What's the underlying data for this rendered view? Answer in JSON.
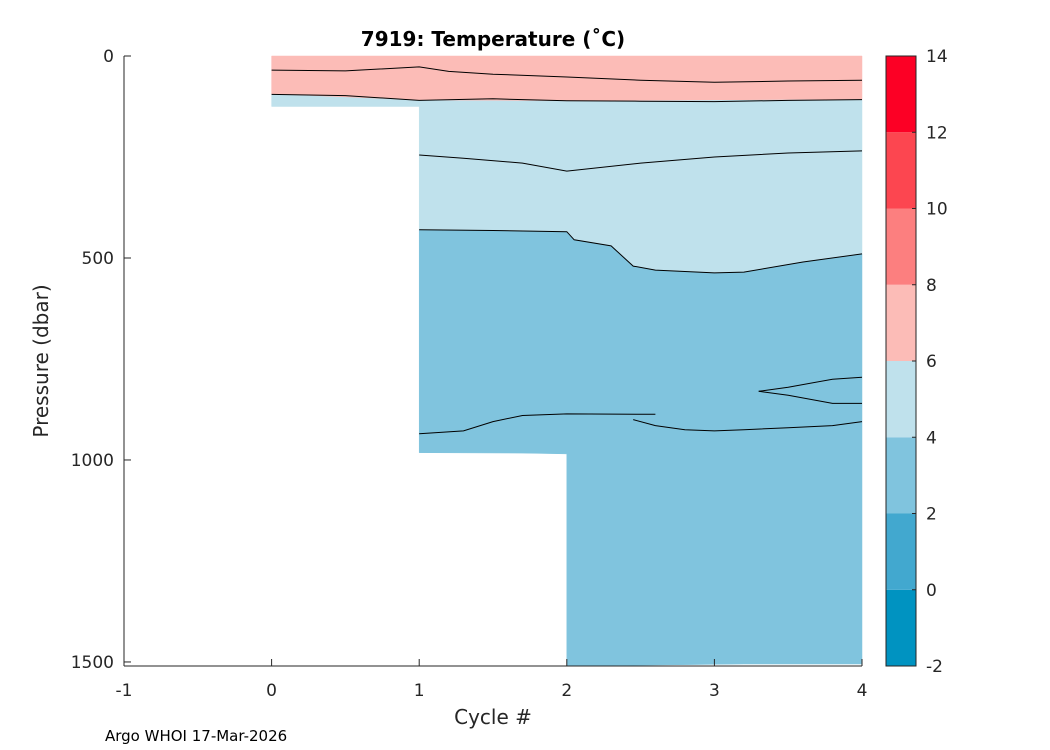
{
  "chart_data": {
    "type": "contourf",
    "title": "7919:  Temperature (˚C)",
    "xlabel": "Cycle #",
    "ylabel": "Pressure (dbar)",
    "xlim": [
      -1,
      4
    ],
    "ylim": [
      1510,
      0
    ],
    "x_ticks": [
      -1,
      0,
      1,
      2,
      3,
      4
    ],
    "y_ticks": [
      0,
      500,
      1000,
      1500
    ],
    "colorbar": {
      "ticks": [
        -2,
        0,
        2,
        4,
        6,
        8,
        10,
        12,
        14
      ],
      "range": [
        -2,
        14
      ],
      "bands": [
        {
          "range": [
            -2,
            0
          ],
          "color": "#0093c1"
        },
        {
          "range": [
            0,
            2
          ],
          "color": "#42a8cf"
        },
        {
          "range": [
            2,
            4
          ],
          "color": "#80c4de"
        },
        {
          "range": [
            4,
            6
          ],
          "color": "#bfe1ec"
        },
        {
          "range": [
            6,
            8
          ],
          "color": "#fcbcb7"
        },
        {
          "range": [
            8,
            10
          ],
          "color": "#fc7f7f"
        },
        {
          "range": [
            10,
            12
          ],
          "color": "#fc4650"
        },
        {
          "range": [
            12,
            14
          ],
          "color": "#fc0025"
        }
      ]
    },
    "regions": [
      {
        "name": "6-8 °C layer",
        "band": "6-8",
        "points": [
          [
            0,
            0
          ],
          [
            4,
            0
          ],
          [
            4,
            108
          ],
          [
            2,
            112
          ],
          [
            1,
            110
          ],
          [
            0,
            95
          ]
        ]
      },
      {
        "name": "4-6 °C layer profile 0",
        "band": "4-6",
        "points": [
          [
            0,
            95
          ],
          [
            1,
            110
          ],
          [
            1,
            125
          ],
          [
            0,
            125
          ]
        ]
      },
      {
        "name": "4-6 °C layer",
        "band": "4-6",
        "points": [
          [
            1,
            110
          ],
          [
            2,
            112
          ],
          [
            4,
            108
          ],
          [
            4,
            490
          ],
          [
            3.6,
            510
          ],
          [
            3.2,
            535
          ],
          [
            3,
            537
          ],
          [
            2.6,
            530
          ],
          [
            2.45,
            520
          ],
          [
            2.3,
            470
          ],
          [
            2.05,
            455
          ],
          [
            2,
            435
          ],
          [
            1.5,
            432
          ],
          [
            1,
            430
          ]
        ]
      },
      {
        "name": "2-4 °C layer",
        "band": "2-4",
        "points": [
          [
            1,
            430
          ],
          [
            1.5,
            432
          ],
          [
            2,
            435
          ],
          [
            2.05,
            455
          ],
          [
            2.3,
            470
          ],
          [
            2.45,
            520
          ],
          [
            2.6,
            530
          ],
          [
            3,
            537
          ],
          [
            3.2,
            535
          ],
          [
            3.6,
            510
          ],
          [
            4,
            490
          ],
          [
            4,
            1505
          ],
          [
            3.2,
            1505
          ],
          [
            2,
            1510
          ],
          [
            2,
            985
          ],
          [
            1.7,
            983
          ],
          [
            1,
            982
          ]
        ]
      }
    ],
    "contours": [
      {
        "level": 8,
        "points": [
          [
            0,
            35
          ],
          [
            0.5,
            37
          ],
          [
            1,
            27
          ],
          [
            1.2,
            38
          ],
          [
            1.5,
            45
          ],
          [
            2,
            52
          ],
          [
            2.5,
            60
          ],
          [
            3,
            65
          ],
          [
            3.5,
            62
          ],
          [
            4,
            60
          ]
        ]
      },
      {
        "level": 6,
        "points": [
          [
            0,
            95
          ],
          [
            0.5,
            98
          ],
          [
            1,
            110
          ],
          [
            1.5,
            106
          ],
          [
            2,
            111
          ],
          [
            2.5,
            112
          ],
          [
            3,
            113
          ],
          [
            3.5,
            110
          ],
          [
            4,
            108
          ]
        ]
      },
      {
        "level": 4,
        "points": [
          [
            1,
            245
          ],
          [
            1.3,
            253
          ],
          [
            1.7,
            265
          ],
          [
            2,
            285
          ],
          [
            2.5,
            265
          ],
          [
            3,
            250
          ],
          [
            3.5,
            240
          ],
          [
            4,
            235
          ]
        ]
      },
      {
        "level": 4,
        "points": [
          [
            1,
            430
          ],
          [
            1.5,
            432
          ],
          [
            2,
            435
          ],
          [
            2.05,
            455
          ],
          [
            2.3,
            470
          ],
          [
            2.45,
            520
          ],
          [
            2.6,
            530
          ],
          [
            3,
            537
          ],
          [
            3.2,
            535
          ],
          [
            3.6,
            510
          ],
          [
            4,
            490
          ]
        ]
      },
      {
        "level": 2,
        "points": [
          [
            1,
            935
          ],
          [
            1.3,
            928
          ],
          [
            1.5,
            905
          ],
          [
            1.7,
            890
          ],
          [
            2,
            886
          ],
          [
            2.6,
            887
          ]
        ]
      },
      {
        "level": 2,
        "points": [
          [
            2.45,
            900
          ],
          [
            2.6,
            915
          ],
          [
            2.8,
            925
          ],
          [
            3,
            928
          ],
          [
            3.2,
            925
          ],
          [
            3.5,
            920
          ],
          [
            3.8,
            915
          ],
          [
            4,
            905
          ]
        ]
      },
      {
        "level": 2,
        "points": [
          [
            3.3,
            830
          ],
          [
            3.5,
            820
          ],
          [
            3.8,
            800
          ],
          [
            4,
            795
          ]
        ]
      },
      {
        "level": 2,
        "points": [
          [
            3.3,
            830
          ],
          [
            3.5,
            840
          ],
          [
            3.8,
            860
          ],
          [
            4,
            860
          ]
        ]
      }
    ]
  },
  "footer": "Argo WHOI 17-Mar-2026"
}
